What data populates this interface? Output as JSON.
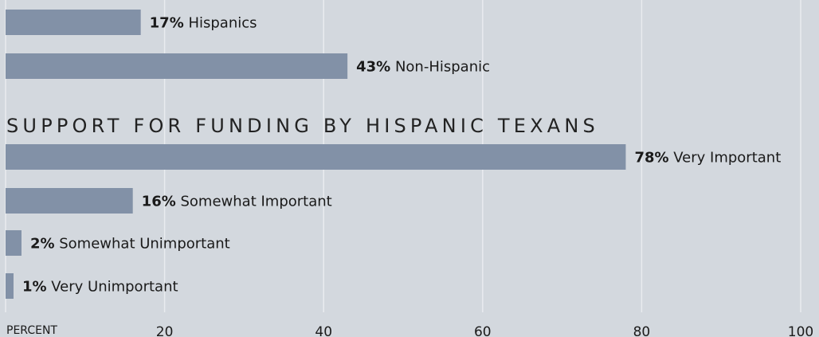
{
  "chart_data": {
    "type": "bar",
    "orientation": "horizontal",
    "xlim": [
      0,
      100
    ],
    "x_axis_label": "PERCENT",
    "x_ticks": [
      20,
      40,
      60,
      80,
      100
    ],
    "grid": true,
    "colors": {
      "background": "#d3d8de",
      "bar": "#8291a7",
      "grid": "#e9ecef",
      "text": "#1a1a1a",
      "heading": "#222222"
    },
    "groups": [
      {
        "heading": "",
        "bars": [
          {
            "value": 17,
            "value_text": "17%",
            "label": "Hispanics"
          },
          {
            "value": 43,
            "value_text": "43%",
            "label": "Non-Hispanic"
          }
        ]
      },
      {
        "heading": "SUPPORT FOR FUNDING BY HISPANIC TEXANS",
        "bars": [
          {
            "value": 78,
            "value_text": "78%",
            "label": "Very Important"
          },
          {
            "value": 16,
            "value_text": "16%",
            "label": "Somewhat Important"
          },
          {
            "value": 2,
            "value_text": "2%",
            "label": "Somewhat Unimportant"
          },
          {
            "value": 1,
            "value_text": "1%",
            "label": "Very Unimportant"
          }
        ]
      }
    ]
  }
}
